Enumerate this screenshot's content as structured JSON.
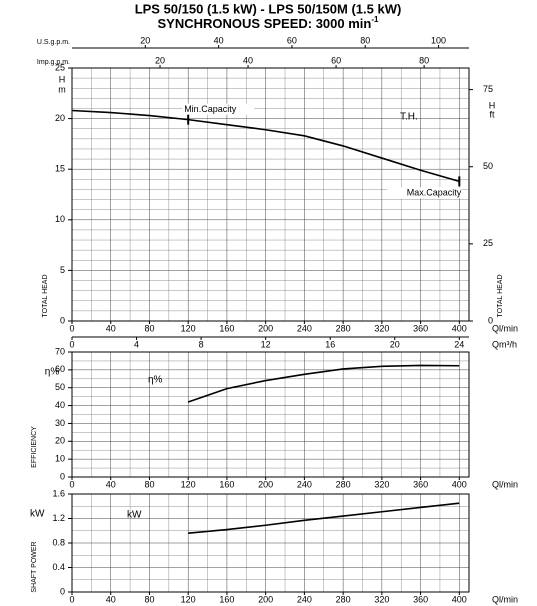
{
  "title": "LPS 50/150 (1.5 kW) - LPS 50/150M (1.5 kW)",
  "subtitle": "SYNCHRONOUS SPEED: 3000 min",
  "subtitle_sup": "-1",
  "chart_data": [
    {
      "type": "line",
      "x": [
        0,
        40,
        80,
        120,
        160,
        200,
        240,
        280,
        320,
        360,
        400
      ],
      "xlim": [
        0,
        410
      ],
      "xticks": [
        0,
        40,
        80,
        120,
        160,
        200,
        240,
        280,
        320,
        360,
        400
      ],
      "x_label": "Ql/min",
      "series": [
        {
          "name": "T.H.",
          "color": "#000000",
          "values": [
            20.8,
            20.6,
            20.3,
            19.9,
            19.4,
            18.9,
            18.3,
            17.3,
            16.1,
            14.9,
            13.8
          ]
        }
      ],
      "ylim": [
        0,
        25
      ],
      "yticks": [
        0,
        5,
        10,
        15,
        20,
        25
      ],
      "y_label": "TOTAL HEAD",
      "y_unit_symbol": "H",
      "y_unit": "m",
      "y2lim": [
        0,
        82
      ],
      "y2ticks": [
        0,
        25,
        50,
        75
      ],
      "y2_label": "TOTAL HEAD",
      "y2_unit_symbol": "H",
      "y2_unit": "ft",
      "grid": true,
      "top_axes": [
        {
          "label": "U.S.g.p.m.",
          "lim": [
            0,
            108.3
          ],
          "ticks": [
            20,
            40,
            60,
            80,
            100
          ]
        },
        {
          "label": "Imp.g.p.m.",
          "lim": [
            0,
            90.2
          ],
          "ticks": [
            20,
            40,
            60,
            80
          ]
        }
      ],
      "bottom_axis2": {
        "label": "Qm³/h",
        "lim": [
          0,
          24.6
        ],
        "ticks": [
          0,
          4,
          8,
          12,
          16,
          20,
          24
        ]
      },
      "annotations": [
        {
          "text": "Min.Capacity",
          "x": 120,
          "y": 19.9
        },
        {
          "text": "Max.Capacity",
          "x": 400,
          "y": 13.8
        }
      ]
    },
    {
      "type": "line",
      "x": [
        120,
        160,
        200,
        240,
        280,
        320,
        360,
        400
      ],
      "xlim": [
        0,
        410
      ],
      "xticks": [
        0,
        40,
        80,
        120,
        160,
        200,
        240,
        280,
        320,
        360,
        400
      ],
      "x_label": "Ql/min",
      "series": [
        {
          "name": "η%",
          "color": "#000000",
          "values": [
            42,
            49.5,
            54,
            57.5,
            60.5,
            62,
            62.5,
            62.3
          ]
        }
      ],
      "ylim": [
        0,
        70
      ],
      "yticks": [
        0,
        10,
        20,
        30,
        40,
        50,
        60,
        70
      ],
      "y_label": "EFFICIENCY",
      "y_unit": "η%",
      "grid": true
    },
    {
      "type": "line",
      "x": [
        120,
        160,
        200,
        240,
        280,
        320,
        360,
        400
      ],
      "xlim": [
        0,
        410
      ],
      "xticks": [
        0,
        40,
        80,
        120,
        160,
        200,
        240,
        280,
        320,
        360,
        400
      ],
      "x_label": "Ql/min",
      "series": [
        {
          "name": "kW",
          "color": "#000000",
          "values": [
            0.96,
            1.02,
            1.09,
            1.17,
            1.24,
            1.31,
            1.38,
            1.45
          ]
        }
      ],
      "ylim": [
        0,
        1.6
      ],
      "yticks": [
        0,
        0.4,
        0.8,
        1.2,
        1.6
      ],
      "y_label": "SHAFT POWER",
      "y_unit": "kW",
      "grid": true
    }
  ]
}
